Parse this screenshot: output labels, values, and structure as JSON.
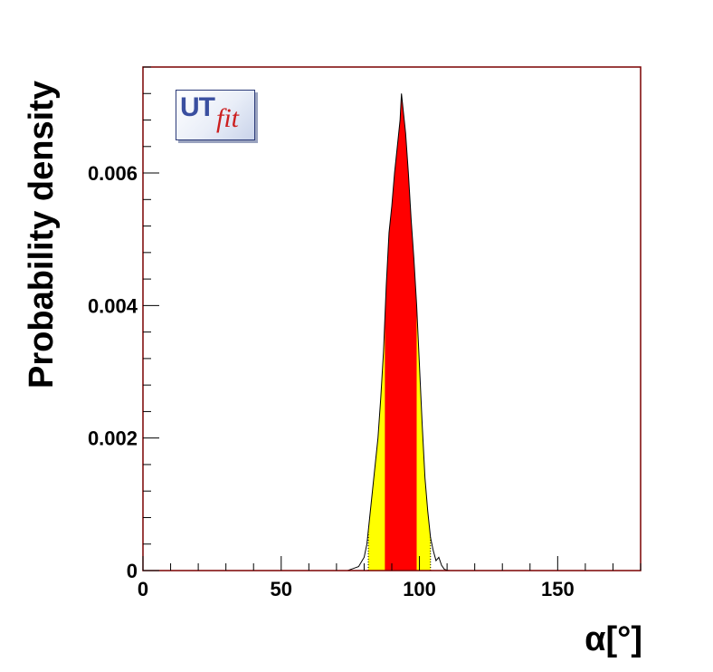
{
  "colors": {
    "frame": "#7a0000",
    "inner_band": "#ff0000",
    "outer_band": "#ffff00",
    "curve": "#000000"
  },
  "logo": {
    "ut": "UT",
    "fit": "fit"
  },
  "chart_data": {
    "type": "area",
    "title": "",
    "xlabel": "α[°]",
    "ylabel": "Probability density",
    "xlim": [
      0,
      180
    ],
    "ylim": [
      0,
      0.0076
    ],
    "x_ticks": [
      0,
      50,
      100,
      150
    ],
    "y_ticks": [
      0,
      0.002,
      0.004,
      0.006
    ],
    "x_tick_labels": [
      "0",
      "50",
      "100",
      "150"
    ],
    "y_tick_labels": [
      "0",
      "0.002",
      "0.004",
      "0.006"
    ],
    "grid": false,
    "bands": {
      "inner_68": [
        87.5,
        99
      ],
      "outer_95": [
        81.5,
        104
      ]
    },
    "x": [
      74,
      76,
      78,
      80,
      81,
      82,
      83,
      84,
      85,
      86,
      87,
      88,
      89,
      90,
      91,
      92,
      93,
      93.5,
      94,
      95,
      96,
      97,
      98,
      99,
      100,
      101,
      102,
      103,
      104,
      105,
      106,
      107,
      108,
      109,
      110,
      111
    ],
    "y": [
      0,
      3e-05,
      6e-05,
      0.0002,
      0.0004,
      0.0008,
      0.0012,
      0.0016,
      0.002,
      0.0026,
      0.0033,
      0.0043,
      0.0051,
      0.0055,
      0.006,
      0.0064,
      0.0068,
      0.0072,
      0.007,
      0.0066,
      0.006,
      0.0053,
      0.0047,
      0.004,
      0.0031,
      0.0022,
      0.0014,
      0.0009,
      0.0005,
      0.0003,
      0.00015,
      0.0002,
      8e-05,
      2e-05,
      5e-06,
      0
    ]
  }
}
